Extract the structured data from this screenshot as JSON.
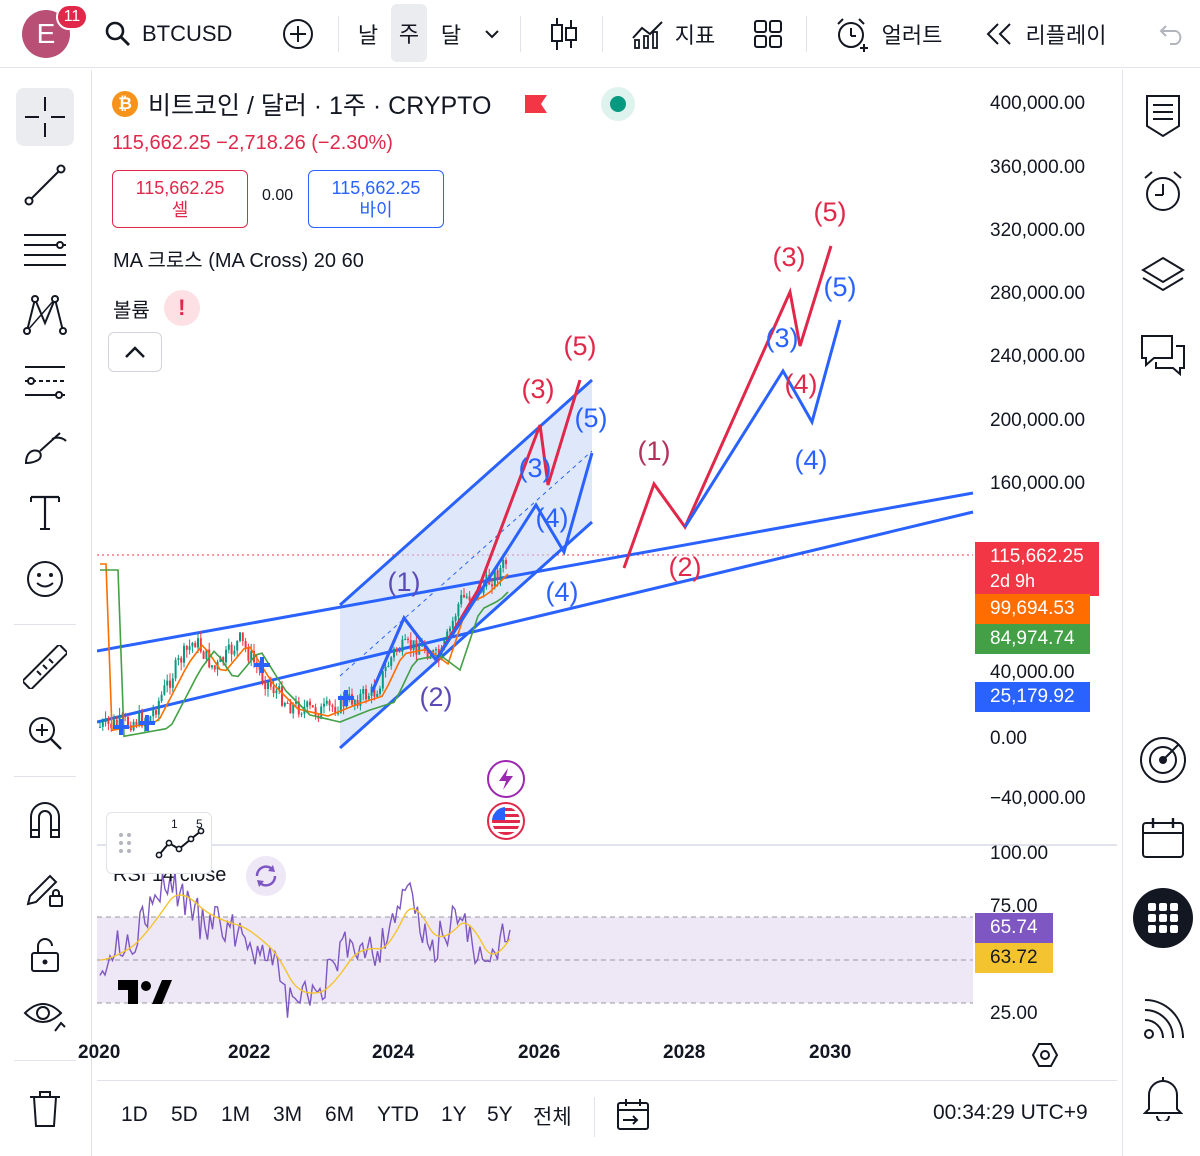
{
  "topbar": {
    "avatar_letter": "E",
    "notification_count": "11",
    "symbol": "BTCUSD",
    "tf_day": "날",
    "tf_week": "주",
    "tf_month": "달",
    "indicators_label": "지표",
    "alerts_label": "얼러트",
    "replay_label": "리플레이"
  },
  "legend": {
    "title": "비트코인 / 달러 · 1주 · CRYPTO",
    "coin_glyph": "₿",
    "price_change": "115,662.25  −2,718.26 (−2.30%)",
    "sell_price": "115,662.25",
    "sell_label": "셀",
    "spread": "0.00",
    "buy_price": "115,662.25",
    "buy_label": "바이",
    "indicator": "MA 크로스 (MA Cross) 20 60",
    "volume": "볼륨",
    "warn_glyph": "!",
    "rsi": "RSI 14 close"
  },
  "colors": {
    "up": "#089981",
    "down": "#f23645",
    "blue_wave": "#2962ff",
    "red_wave": "#e0284a",
    "purple_label": "#5b4bb7",
    "channel_fill": "#c5d5f7",
    "rsi_band": "#ede7f6",
    "ma_fast": "#ff6d00",
    "ma_slow": "#43a047",
    "rsi_ma": "#f4c430",
    "rsi_line": "#7e57c2"
  },
  "price_axis": {
    "labels": [
      "400,000.00",
      "360,000.00",
      "320,000.00",
      "280,000.00",
      "240,000.00",
      "200,000.00",
      "160,000.00",
      "40,000.00",
      "0.00",
      "−40,000.00"
    ],
    "last_price": "115,662.25",
    "countdown": "2d 9h",
    "ma_fast_value": "99,694.53",
    "ma_slow_value": "84,974.74",
    "volume_value": "25,179.92"
  },
  "rsi_axis": {
    "labels": [
      "100.00",
      "75.00",
      "25.00"
    ],
    "rsi_value": "65.74",
    "rsi_ma_value": "63.72"
  },
  "time_axis": [
    "2020",
    "2022",
    "2024",
    "2026",
    "2028",
    "2030"
  ],
  "wave_labels": {
    "ch_1": "(1)",
    "ch_2": "(2)",
    "ch_3_red": "(3)",
    "ch_3_blue": "(3)",
    "ch_4_blue": "(4)",
    "ch_4_low": "(4)",
    "ch_5_red": "(5)",
    "ch_5_blue": "(5)",
    "f_1": "(1)",
    "f_2": "(2)",
    "f_3_red": "(3)",
    "f_3_blue": "(3)",
    "f_4_red": "(4)",
    "f_4_blue": "(4)",
    "f_5_red": "(5)",
    "f_5_blue": "(5)"
  },
  "ew_widget": {
    "n1": "1",
    "n5": "5"
  },
  "bottombar": {
    "ranges": [
      "1D",
      "5D",
      "1M",
      "3M",
      "6M",
      "YTD",
      "1Y",
      "5Y",
      "전체"
    ],
    "clock": "00:34:29 UTC+9"
  }
}
